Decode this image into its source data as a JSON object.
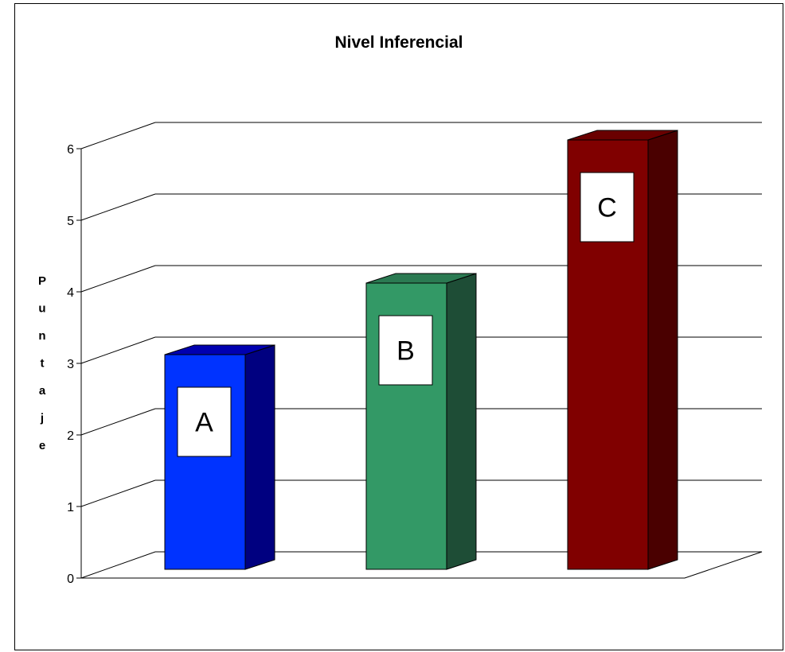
{
  "chart_data": {
    "type": "bar",
    "title": "Nivel Inferencial",
    "ylabel": "Puntaje",
    "xlabel": "",
    "categories": [
      "A",
      "B",
      "C"
    ],
    "values": [
      3,
      4,
      6
    ],
    "ylim": [
      0,
      6
    ],
    "yticks": [
      "0",
      "1",
      "2",
      "3",
      "4",
      "5",
      "6"
    ],
    "grid": true,
    "legend": "none",
    "colors": [
      {
        "front": "#0033ff",
        "side": "#000080",
        "top": "#0000b0"
      },
      {
        "front": "#339966",
        "side": "#1e4d36",
        "top": "#2b7a52"
      },
      {
        "front": "#800000",
        "side": "#4a0000",
        "top": "#6a0000"
      }
    ]
  }
}
